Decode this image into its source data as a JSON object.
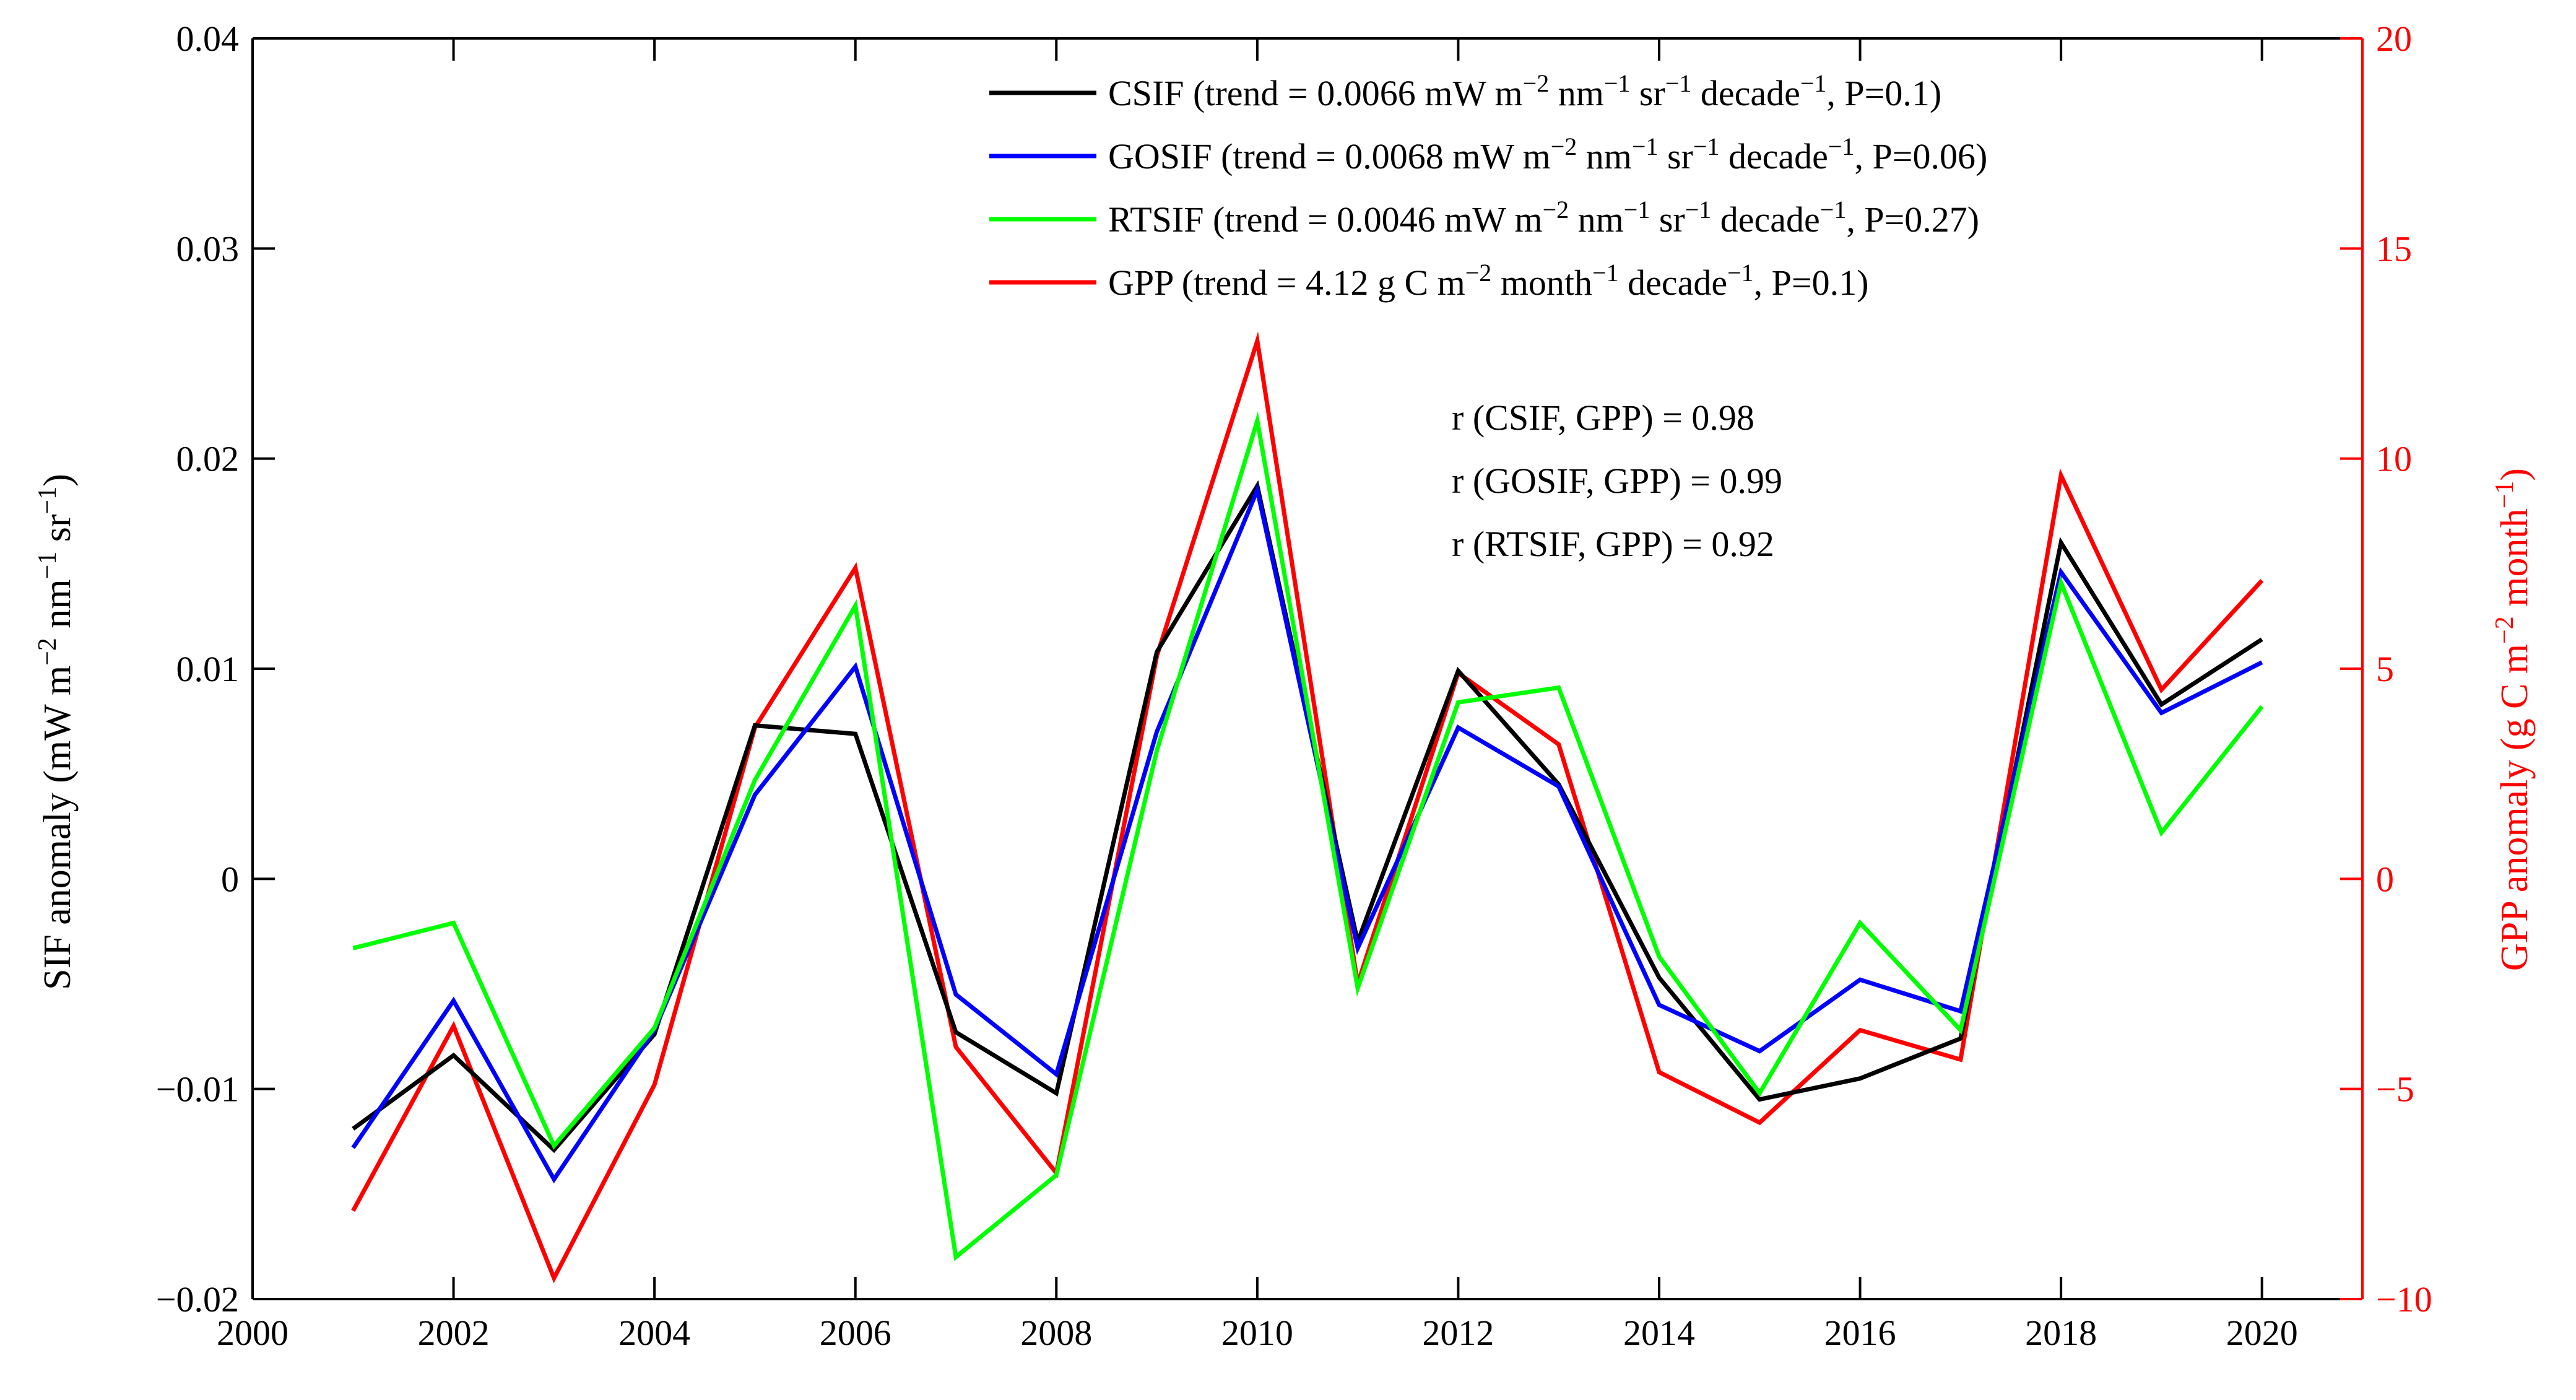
{
  "chart_data": {
    "type": "line",
    "x": [
      2001,
      2002,
      2003,
      2004,
      2005,
      2006,
      2007,
      2008,
      2009,
      2010,
      2011,
      2012,
      2013,
      2014,
      2015,
      2016,
      2017,
      2018,
      2019,
      2020
    ],
    "xlim": [
      2000,
      2021
    ],
    "xticks": [
      "2000",
      "2002",
      "2004",
      "2006",
      "2008",
      "2010",
      "2012",
      "2014",
      "2016",
      "2018",
      "2020"
    ],
    "ylim_left": [
      -0.02,
      0.04
    ],
    "yticks_left": [
      "−0.02",
      "−0.01",
      "0",
      "0.01",
      "0.02",
      "0.03",
      "0.04"
    ],
    "ylim_right": [
      -10,
      20
    ],
    "yticks_right": [
      "−10",
      "−5",
      "0",
      "5",
      "10",
      "15",
      "20"
    ],
    "ylabel_left": {
      "main": "SIF anomaly (mW m",
      "sup1": "−2",
      "mid1": " nm",
      "sup2": "−1",
      "mid2": " sr",
      "sup3": "−1",
      "end": ")"
    },
    "ylabel_right": {
      "main": "GPP anomaly (g C m",
      "sup1": "−2",
      "mid1": " month",
      "sup2": "−1",
      "end": ")"
    },
    "series": [
      {
        "name": "CSIF",
        "axis": "left",
        "color": "#000000",
        "values": [
          -0.0119,
          -0.0084,
          -0.0129,
          -0.0074,
          0.0073,
          0.0069,
          -0.0073,
          -0.0102,
          0.0108,
          0.0187,
          -0.003,
          0.0099,
          0.0045,
          -0.0047,
          -0.0105,
          -0.0095,
          -0.0076,
          0.016,
          0.0083,
          0.0114
        ],
        "legend": {
          "label": "CSIF (trend = 0.0066 mW m",
          "s1": "−2",
          "t2": " nm",
          "s2": "−1",
          "t3": " sr",
          "s3": "−1",
          "t4": " decade",
          "s4": "−1",
          "t5": ", P=0.1)"
        }
      },
      {
        "name": "GOSIF",
        "axis": "left",
        "color": "#0000ff",
        "values": [
          -0.0128,
          -0.0058,
          -0.0143,
          -0.0072,
          0.004,
          0.0101,
          -0.0055,
          -0.0093,
          0.007,
          0.0185,
          -0.0033,
          0.0072,
          0.0044,
          -0.006,
          -0.0082,
          -0.0048,
          -0.0063,
          0.0146,
          0.0079,
          0.0103
        ],
        "legend": {
          "label": "GOSIF (trend = 0.0068 mW m",
          "s1": "−2",
          "t2": " nm",
          "s2": "−1",
          "t3": " sr",
          "s3": "−1",
          "t4": " decade",
          "s4": "−1",
          "t5": ", P=0.06)"
        }
      },
      {
        "name": "RTSIF",
        "axis": "left",
        "color": "#00ff00",
        "values": [
          -0.0033,
          -0.0021,
          -0.0127,
          -0.0071,
          0.0047,
          0.013,
          -0.018,
          -0.0141,
          0.0061,
          0.0218,
          -0.0052,
          0.0084,
          0.0091,
          -0.0037,
          -0.0102,
          -0.0021,
          -0.0072,
          0.0141,
          0.0022,
          0.0082
        ],
        "legend": {
          "label": "RTSIF (trend = 0.0046 mW m",
          "s1": "−2",
          "t2": " nm",
          "s2": "−1",
          "t3": " sr",
          "s3": "−1",
          "t4": " decade",
          "s4": "−1",
          "t5": ", P=0.27)"
        }
      },
      {
        "name": "GPP",
        "axis": "right",
        "color": "#ff0000",
        "values": [
          -7.9,
          -3.5,
          -9.5,
          -4.9,
          3.6,
          7.4,
          -4.0,
          -7.0,
          5.3,
          12.8,
          -2.5,
          4.9,
          3.2,
          -4.6,
          -5.8,
          -3.6,
          -4.3,
          9.6,
          4.5,
          7.1
        ],
        "legend": {
          "label": "GPP (trend = 4.12 g C m",
          "s1": "−2",
          "t2": " month",
          "s2": "−1",
          "t3": " decade",
          "s3": "−1",
          "t4": ", P=0.1)",
          "s4": "",
          "t5": ""
        }
      }
    ],
    "annotations": [
      "r (CSIF, GPP) = 0.98",
      "r (GOSIF, GPP) = 0.99",
      "r (RTSIF, GPP) = 0.92"
    ],
    "legend_position": "top-right",
    "grid": false
  }
}
